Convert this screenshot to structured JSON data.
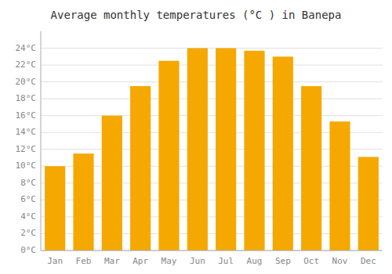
{
  "chart_data": {
    "type": "bar",
    "title": "Average monthly temperatures (°C ) in Banepa",
    "categories": [
      "Jan",
      "Feb",
      "Mar",
      "Apr",
      "May",
      "Jun",
      "Jul",
      "Aug",
      "Sep",
      "Oct",
      "Nov",
      "Dec"
    ],
    "values": [
      10.0,
      11.5,
      16.0,
      19.5,
      22.5,
      24.0,
      24.0,
      23.7,
      23.0,
      19.5,
      15.3,
      11.1
    ],
    "color": "#F5A800",
    "ylim": [
      0,
      26
    ],
    "yticks": [
      {
        "value": 0,
        "label": "0°C"
      },
      {
        "value": 2,
        "label": "2°C"
      },
      {
        "value": 4,
        "label": "4°C"
      },
      {
        "value": 6,
        "label": "6°C"
      },
      {
        "value": 8,
        "label": "8°C"
      },
      {
        "value": 10,
        "label": "10°C"
      },
      {
        "value": 12,
        "label": "12°C"
      },
      {
        "value": 14,
        "label": "14°C"
      },
      {
        "value": 16,
        "label": "16°C"
      },
      {
        "value": 18,
        "label": "18°C"
      },
      {
        "value": 20,
        "label": "20°C"
      },
      {
        "value": 22,
        "label": "22°C"
      },
      {
        "value": 24,
        "label": "24°C"
      }
    ],
    "grid": true
  }
}
